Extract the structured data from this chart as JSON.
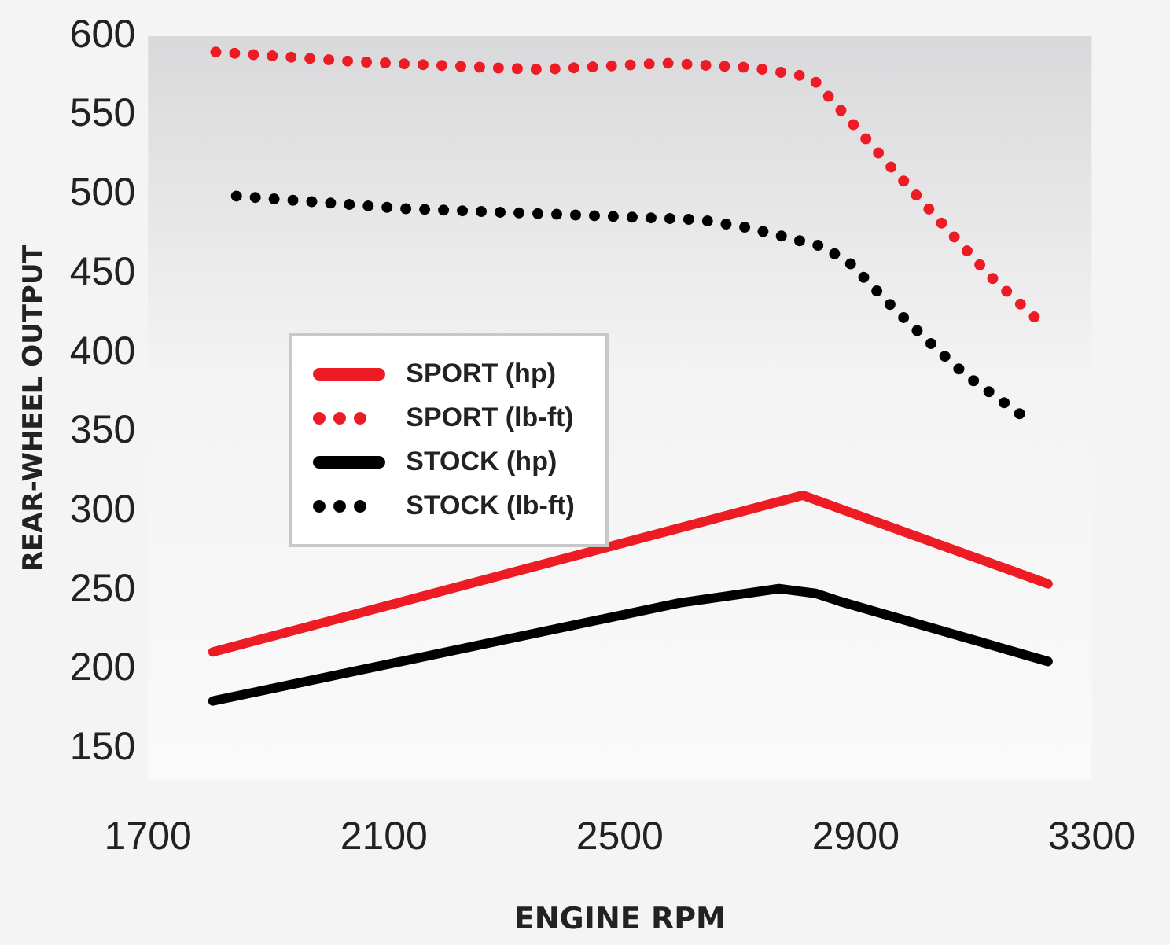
{
  "chart_data": {
    "type": "line",
    "xlabel": "ENGINE RPM",
    "ylabel": "REAR-WHEEL OUTPUT",
    "xlim": [
      1700,
      3300
    ],
    "xticks": [
      1700,
      2100,
      2500,
      2900,
      3300
    ],
    "ylim": [
      130,
      600
    ],
    "yticks": [
      150,
      200,
      250,
      300,
      350,
      400,
      450,
      500,
      550,
      600
    ],
    "grid": false,
    "legend": "center left",
    "marker": "none",
    "series": [
      {
        "name": "SPORT (hp)",
        "color": "#ed1c24",
        "line_style": "solid",
        "x": [
          1810,
          2810,
          3226
        ],
        "values": [
          211,
          310,
          254
        ]
      },
      {
        "name": "SPORT (lb-ft)",
        "color": "#ed1c24",
        "line_style": "dotted",
        "x": [
          1815,
          2049,
          2284,
          2372,
          2578,
          2727,
          2825,
          2856,
          2946,
          3038,
          3129,
          3225
        ],
        "values": [
          590,
          584,
          580,
          579,
          583,
          580,
          574,
          561,
          523,
          485,
          448,
          415
        ]
      },
      {
        "name": "STOCK (hp)",
        "color": "#000000",
        "line_style": "solid",
        "x": [
          1810,
          2601,
          2770,
          2832,
          2873,
          3226
        ],
        "values": [
          180,
          242,
          251,
          248,
          243,
          205
        ]
      },
      {
        "name": "STOCK (lb-ft)",
        "color": "#000000",
        "line_style": "dotted",
        "x": [
          1850,
          2137,
          2426,
          2638,
          2717,
          2792,
          2845,
          2892,
          2954,
          3018,
          3086,
          3191
        ],
        "values": [
          499,
          491,
          487,
          484,
          479,
          472,
          467,
          456,
          432,
          409,
          386,
          358
        ]
      }
    ]
  }
}
